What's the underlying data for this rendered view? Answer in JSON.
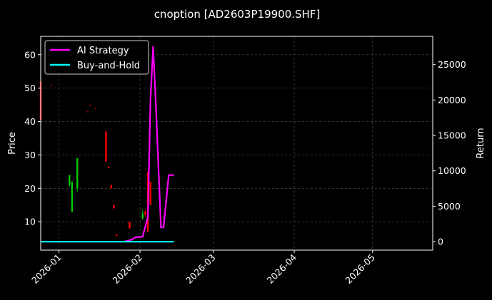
{
  "chart_data": {
    "type": "line",
    "title": "cnoption [AD2603P19900.SHF]",
    "ylabel_left": "Price",
    "ylabel_right": "Return",
    "x_range": [
      "2025-12-25",
      "2026-05-24"
    ],
    "ylim_left": [
      1.5,
      65.5
    ],
    "ylim_right": [
      -1200,
      29000
    ],
    "x_ticks": [
      "2026-01",
      "2026-02",
      "2026-03",
      "2026-04",
      "2026-05"
    ],
    "y_ticks_left": [
      10,
      20,
      30,
      40,
      50,
      60
    ],
    "y_ticks_right": [
      0,
      5000,
      10000,
      15000,
      20000,
      25000
    ],
    "grid": true,
    "legend_position": "top-left",
    "colors": {
      "up": "#00cc00",
      "down": "#ff0000",
      "ai": "#ff00ff",
      "bh": "#00ffff"
    },
    "candles": [
      {
        "date": "2025-12-25",
        "open": 52,
        "close": 40.5,
        "high": 52,
        "low": 40.5
      },
      {
        "date": "2025-12-29",
        "open": 51,
        "close": 50.8,
        "high": 51,
        "low": 50.8
      },
      {
        "date": "2026-01-05",
        "open": 21,
        "close": 24,
        "high": 24,
        "low": 20.5
      },
      {
        "date": "2026-01-06",
        "open": 13,
        "close": 22,
        "high": 22,
        "low": 13
      },
      {
        "date": "2026-01-08",
        "open": 20,
        "close": 29,
        "high": 29,
        "low": 19
      },
      {
        "date": "2026-01-12",
        "open": 43,
        "close": 42.8,
        "high": 43,
        "low": 42.8
      },
      {
        "date": "2026-01-13",
        "open": 45,
        "close": 44.8,
        "high": 45,
        "low": 44.8
      },
      {
        "date": "2026-01-15",
        "open": 44,
        "close": 43.8,
        "high": 44,
        "low": 43.8
      },
      {
        "date": "2026-01-19",
        "open": 37,
        "close": 28,
        "high": 37,
        "low": 28
      },
      {
        "date": "2026-01-20",
        "open": 26.5,
        "close": 26,
        "high": 26.5,
        "low": 26
      },
      {
        "date": "2026-01-21",
        "open": 21,
        "close": 20,
        "high": 21,
        "low": 20
      },
      {
        "date": "2026-01-22",
        "open": 15,
        "close": 14,
        "high": 15,
        "low": 14
      },
      {
        "date": "2026-01-23",
        "open": 6.2,
        "close": 5.8,
        "high": 6.2,
        "low": 5.8
      },
      {
        "date": "2026-01-28",
        "open": 10,
        "close": 8,
        "high": 10,
        "low": 8
      },
      {
        "date": "2026-02-02",
        "open": 11,
        "close": 12.5,
        "high": 13.5,
        "low": 10.5
      },
      {
        "date": "2026-02-03",
        "open": 13,
        "close": 12,
        "high": 13.5,
        "low": 11.5
      },
      {
        "date": "2026-02-04",
        "open": 25,
        "close": 7,
        "high": 25,
        "low": 7
      },
      {
        "date": "2026-02-05",
        "open": 22,
        "close": 15,
        "high": 22,
        "low": 15
      }
    ],
    "series": [
      {
        "name": "AI Strategy",
        "points": [
          {
            "x": "2026-01-26",
            "y": 0
          },
          {
            "x": "2026-01-29",
            "y": 300
          },
          {
            "x": "2026-01-30",
            "y": 600
          },
          {
            "x": "2026-02-02",
            "y": 700
          },
          {
            "x": "2026-02-04",
            "y": 3500
          },
          {
            "x": "2026-02-05",
            "y": 20000
          },
          {
            "x": "2026-02-06",
            "y": 27500
          },
          {
            "x": "2026-02-07",
            "y": 20000
          },
          {
            "x": "2026-02-09",
            "y": 2000
          },
          {
            "x": "2026-02-10",
            "y": 2000
          },
          {
            "x": "2026-02-12",
            "y": 9400
          },
          {
            "x": "2026-02-14",
            "y": 9400
          }
        ]
      },
      {
        "name": "Buy-and-Hold",
        "points": [
          {
            "x": "2025-12-25",
            "y": 0
          },
          {
            "x": "2026-02-14",
            "y": 0
          }
        ]
      }
    ]
  }
}
